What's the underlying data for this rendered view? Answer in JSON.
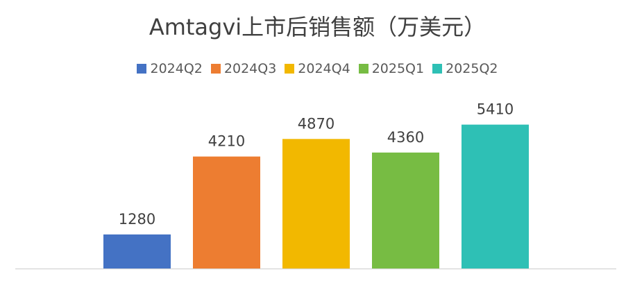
{
  "chart_data": {
    "type": "bar",
    "title": "Amtagvi上市后销售额（万美元）",
    "categories": [
      "2024Q2",
      "2024Q3",
      "2024Q4",
      "2025Q1",
      "2025Q2"
    ],
    "values": [
      1280,
      4210,
      4870,
      4360,
      5410
    ],
    "colors": [
      "#4472C4",
      "#ED7D31",
      "#F2B800",
      "#77BC43",
      "#2EC0B5"
    ],
    "xlabel": "",
    "ylabel": "",
    "ylim": [
      0,
      6000
    ],
    "legend": "top",
    "grid": false
  }
}
